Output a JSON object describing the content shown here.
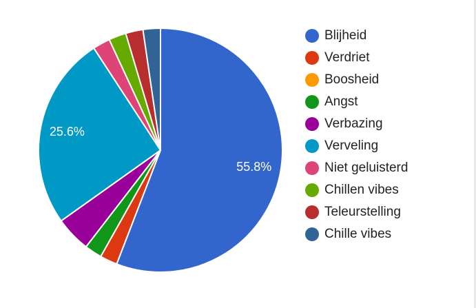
{
  "chart_data": {
    "type": "pie",
    "start_angle_deg": 90,
    "direction": "clockwise",
    "legend_position": "right",
    "slices": [
      {
        "label": "Blijheid",
        "value": 55.8,
        "color": "#3366cc",
        "data_label": "55.8%"
      },
      {
        "label": "Verdriet",
        "value": 2.3,
        "color": "#dc3912",
        "data_label": ""
      },
      {
        "label": "Boosheid",
        "value": 0,
        "color": "#ff9900",
        "data_label": ""
      },
      {
        "label": "Angst",
        "value": 2.3,
        "color": "#109618",
        "data_label": ""
      },
      {
        "label": "Verbazing",
        "value": 4.7,
        "color": "#990099",
        "data_label": ""
      },
      {
        "label": "Verveling",
        "value": 25.6,
        "color": "#0099c6",
        "data_label": "25.6%"
      },
      {
        "label": "Niet geluisterd",
        "value": 2.3,
        "color": "#dd4477",
        "data_label": ""
      },
      {
        "label": "Chillen vibes",
        "value": 2.3,
        "color": "#66aa00",
        "data_label": ""
      },
      {
        "label": "Teleurstelling",
        "value": 2.3,
        "color": "#b82e2e",
        "data_label": ""
      },
      {
        "label": "Chille vibes",
        "value": 2.3,
        "color": "#316395",
        "data_label": ""
      }
    ]
  }
}
